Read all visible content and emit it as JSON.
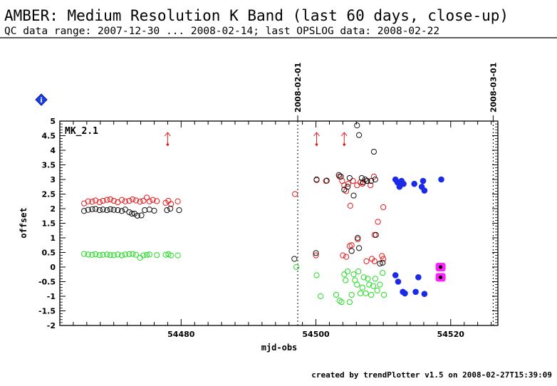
{
  "header": {
    "title": "AMBER: Medium Resolution K Band (last 60 days, close-up)",
    "subtitle": "QC data range: 2007-12-30 ... 2008-02-14; last OPSLOG data: 2008-02-22"
  },
  "footer": {
    "credit": "created by trendPlotter v1.5 on 2008-02-27T15:39:09"
  },
  "info_badge": {
    "icon": "info-diamond-icon",
    "label": "i",
    "color": "#1a3ee8"
  },
  "chart_data": {
    "type": "scatter",
    "panel_label": "MK_2.1",
    "xlabel": "mjd-obs",
    "ylabel": "offset",
    "xlim": [
      54462,
      54527
    ],
    "ylim": [
      -2,
      5
    ],
    "x_ticks": [
      54480,
      54500,
      54520
    ],
    "y_ticks": [
      -2,
      -1.5,
      -1,
      -0.5,
      0,
      0.5,
      1,
      1.5,
      2,
      2.5,
      3,
      3.5,
      4,
      4.5,
      5
    ],
    "date_markers": [
      {
        "label": "2008-02-01",
        "x": 54497.3
      },
      {
        "label": "2008-03-01",
        "x": 54526.3
      }
    ],
    "colors": {
      "red": "#e8191b",
      "black": "#111111",
      "green": "#22dd22",
      "blue": "#1b2be8",
      "magenta": "#ff22ff"
    },
    "out_of_range_arrows": [
      {
        "x": 54478,
        "color": "red"
      },
      {
        "x": 54500.1,
        "color": "red"
      },
      {
        "x": 54504.2,
        "color": "red"
      }
    ],
    "series": [
      {
        "color": "red",
        "marker": "open",
        "points": [
          [
            54465.6,
            2.18
          ],
          [
            54466.2,
            2.25
          ],
          [
            54466.8,
            2.24
          ],
          [
            54467.3,
            2.28
          ],
          [
            54467.9,
            2.22
          ],
          [
            54468.4,
            2.27
          ],
          [
            54469.0,
            2.3
          ],
          [
            54469.5,
            2.32
          ],
          [
            54470.0,
            2.27
          ],
          [
            54470.6,
            2.22
          ],
          [
            54471.2,
            2.3
          ],
          [
            54471.7,
            2.25
          ],
          [
            54472.3,
            2.27
          ],
          [
            54472.8,
            2.32
          ],
          [
            54473.3,
            2.28
          ],
          [
            54473.9,
            2.24
          ],
          [
            54474.4,
            2.27
          ],
          [
            54474.9,
            2.38
          ],
          [
            54475.3,
            2.25
          ],
          [
            54475.8,
            2.3
          ],
          [
            54476.4,
            2.26
          ],
          [
            54477.7,
            2.2
          ],
          [
            54478.1,
            2.27
          ],
          [
            54478.5,
            2.16
          ],
          [
            54479.5,
            2.25
          ],
          [
            54496.9,
            2.5
          ],
          [
            54500.1,
            2.98
          ],
          [
            54501.5,
            2.95
          ],
          [
            54503.5,
            3.1
          ],
          [
            54503.9,
            2.95
          ],
          [
            54504.2,
            2.8
          ],
          [
            54504.5,
            2.6
          ],
          [
            54504.8,
            2.85
          ],
          [
            54505.1,
            2.1
          ],
          [
            54505.5,
            2.95
          ],
          [
            54506.1,
            2.8
          ],
          [
            54506.6,
            2.9
          ],
          [
            54506.9,
            2.85
          ],
          [
            54507.5,
            2.95
          ],
          [
            54508.1,
            2.8
          ],
          [
            54508.6,
            3.1
          ],
          [
            54510.0,
            2.05
          ],
          [
            54508.7,
            1.1
          ],
          [
            54509.2,
            1.55
          ],
          [
            54504.5,
            0.35
          ],
          [
            54505.0,
            0.72
          ],
          [
            54505.3,
            0.75
          ],
          [
            54506.2,
            0.95
          ],
          [
            54507.5,
            0.2
          ],
          [
            54508.3,
            0.28
          ],
          [
            54508.7,
            0.2
          ],
          [
            54509.8,
            0.38
          ],
          [
            54510.0,
            0.28
          ],
          [
            54500.0,
            0.4
          ],
          [
            54504.0,
            0.4
          ]
        ]
      },
      {
        "color": "black",
        "marker": "open",
        "points": [
          [
            54465.6,
            1.92
          ],
          [
            54466.2,
            1.96
          ],
          [
            54466.8,
            1.98
          ],
          [
            54467.3,
            1.99
          ],
          [
            54467.9,
            1.95
          ],
          [
            54468.4,
            1.97
          ],
          [
            54469.0,
            1.95
          ],
          [
            54469.5,
            1.98
          ],
          [
            54470.0,
            1.96
          ],
          [
            54470.6,
            1.95
          ],
          [
            54471.2,
            1.92
          ],
          [
            54471.7,
            1.97
          ],
          [
            54472.3,
            1.88
          ],
          [
            54472.7,
            1.83
          ],
          [
            54473.1,
            1.83
          ],
          [
            54473.5,
            1.76
          ],
          [
            54474.1,
            1.77
          ],
          [
            54474.6,
            1.95
          ],
          [
            54475.3,
            1.97
          ],
          [
            54476.0,
            1.93
          ],
          [
            54477.9,
            1.95
          ],
          [
            54478.4,
            2.0
          ],
          [
            54479.7,
            1.95
          ],
          [
            54496.8,
            0.28
          ],
          [
            54500.0,
            0.48
          ],
          [
            54500.1,
            3.0
          ],
          [
            54501.6,
            2.96
          ],
          [
            54503.4,
            3.15
          ],
          [
            54503.7,
            3.1
          ],
          [
            54504.2,
            2.65
          ],
          [
            54504.7,
            2.75
          ],
          [
            54505.0,
            3.05
          ],
          [
            54505.3,
            0.55
          ],
          [
            54505.6,
            2.45
          ],
          [
            54506.1,
            4.85
          ],
          [
            54506.4,
            4.52
          ],
          [
            54506.8,
            3.05
          ],
          [
            54507.0,
            2.9
          ],
          [
            54507.3,
            3.0
          ],
          [
            54507.6,
            2.95
          ],
          [
            54508.2,
            2.95
          ],
          [
            54508.6,
            3.95
          ],
          [
            54508.8,
            3.0
          ],
          [
            54508.9,
            1.1
          ],
          [
            54509.5,
            0.12
          ],
          [
            54509.9,
            0.15
          ],
          [
            54506.4,
            0.65
          ],
          [
            54506.2,
            1.0
          ]
        ]
      },
      {
        "color": "green",
        "marker": "open",
        "points": [
          [
            54465.6,
            0.45
          ],
          [
            54466.2,
            0.43
          ],
          [
            54466.8,
            0.42
          ],
          [
            54467.3,
            0.44
          ],
          [
            54467.9,
            0.41
          ],
          [
            54468.4,
            0.42
          ],
          [
            54469.0,
            0.43
          ],
          [
            54469.5,
            0.41
          ],
          [
            54470.0,
            0.41
          ],
          [
            54470.6,
            0.43
          ],
          [
            54471.2,
            0.4
          ],
          [
            54471.7,
            0.43
          ],
          [
            54472.3,
            0.44
          ],
          [
            54472.8,
            0.45
          ],
          [
            54473.3,
            0.42
          ],
          [
            54473.9,
            0.32
          ],
          [
            54474.4,
            0.4
          ],
          [
            54474.9,
            0.42
          ],
          [
            54475.3,
            0.43
          ],
          [
            54476.4,
            0.41
          ],
          [
            54477.7,
            0.42
          ],
          [
            54478.1,
            0.44
          ],
          [
            54478.5,
            0.4
          ],
          [
            54479.5,
            0.4
          ],
          [
            54497.1,
            0.0
          ],
          [
            54500.1,
            -0.28
          ],
          [
            54500.7,
            -1.0
          ],
          [
            54503.0,
            -0.95
          ],
          [
            54503.5,
            -1.15
          ],
          [
            54503.8,
            -1.2
          ],
          [
            54504.2,
            -0.25
          ],
          [
            54504.4,
            -0.45
          ],
          [
            54504.7,
            -0.15
          ],
          [
            54505.0,
            -1.2
          ],
          [
            54505.3,
            -0.95
          ],
          [
            54505.6,
            -0.25
          ],
          [
            54505.8,
            -0.45
          ],
          [
            54506.1,
            -0.6
          ],
          [
            54506.3,
            -0.15
          ],
          [
            54506.6,
            -0.9
          ],
          [
            54506.9,
            -0.7
          ],
          [
            54507.1,
            -0.35
          ],
          [
            54507.4,
            -0.9
          ],
          [
            54507.7,
            -0.4
          ],
          [
            54507.9,
            -0.6
          ],
          [
            54508.2,
            -0.95
          ],
          [
            54508.5,
            -0.65
          ],
          [
            54508.8,
            -0.4
          ],
          [
            54509.1,
            -0.8
          ],
          [
            54509.5,
            -0.6
          ],
          [
            54509.9,
            -0.2
          ],
          [
            54510.1,
            -0.95
          ]
        ]
      },
      {
        "color": "blue",
        "marker": "filled",
        "points": [
          [
            54511.8,
            3.0
          ],
          [
            54512.1,
            2.9
          ],
          [
            54512.4,
            2.75
          ],
          [
            54512.7,
            2.95
          ],
          [
            54513.0,
            2.85
          ],
          [
            54514.6,
            2.85
          ],
          [
            54515.7,
            2.75
          ],
          [
            54515.9,
            2.95
          ],
          [
            54516.1,
            2.62
          ],
          [
            54518.6,
            3.0
          ],
          [
            54511.8,
            -0.28
          ],
          [
            54512.2,
            -0.5
          ],
          [
            54512.9,
            -0.85
          ],
          [
            54513.2,
            -0.9
          ],
          [
            54514.8,
            -0.85
          ],
          [
            54515.2,
            -0.35
          ],
          [
            54516.1,
            -0.92
          ]
        ]
      },
      {
        "color": "magenta",
        "marker": "filled-square-black-dot",
        "points": [
          [
            54518.5,
            0.0
          ],
          [
            54518.5,
            -0.35
          ]
        ]
      }
    ]
  }
}
